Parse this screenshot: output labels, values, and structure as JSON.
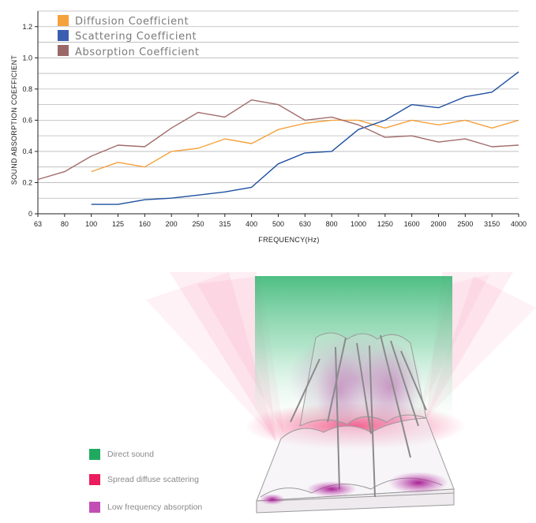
{
  "chart_data": {
    "type": "line",
    "xlabel": "FREQUENCY(Hz)",
    "ylabel": "SOUND ABSORPTION COEFFICIENT",
    "categories": [
      "63",
      "80",
      "100",
      "125",
      "160",
      "200",
      "250",
      "315",
      "400",
      "500",
      "630",
      "800",
      "1000",
      "1250",
      "1600",
      "2000",
      "2500",
      "3150",
      "4000"
    ],
    "ylim": [
      0,
      1.3
    ],
    "yticks": [
      "0",
      "0.2",
      "0.4",
      "0.6",
      "0.8",
      "1.0",
      "1.2"
    ],
    "grid": true,
    "legend_position": "top-left",
    "series": [
      {
        "name": "Diffusion Coefficient",
        "color": "#f5a13c",
        "values": [
          null,
          null,
          0.27,
          0.33,
          0.3,
          0.4,
          0.42,
          0.48,
          0.45,
          0.54,
          0.58,
          0.6,
          0.6,
          0.55,
          0.6,
          0.57,
          0.6,
          0.55,
          0.6
        ]
      },
      {
        "name": "Scattering Coefficient",
        "color": "#1f4fa0",
        "values": [
          null,
          null,
          0.06,
          0.06,
          0.09,
          0.1,
          0.12,
          0.14,
          0.17,
          0.32,
          0.39,
          0.4,
          0.54,
          0.6,
          0.7,
          0.68,
          0.75,
          0.78,
          0.91
        ]
      },
      {
        "name": "Absorption Coefficient",
        "color": "#a26c6c",
        "values": [
          0.22,
          0.27,
          0.37,
          0.44,
          0.43,
          0.55,
          0.65,
          0.62,
          0.73,
          0.7,
          0.6,
          0.62,
          0.57,
          0.49,
          0.5,
          0.46,
          0.48,
          0.43,
          0.44
        ]
      }
    ]
  },
  "illustration": {
    "legend": [
      {
        "label": "Direct sound",
        "color": "#1faa5f"
      },
      {
        "label": "Spread diffuse scattering",
        "color": "#ec1d5f"
      },
      {
        "label": "Low frequency absorption",
        "color": "#c24fb3"
      }
    ]
  }
}
